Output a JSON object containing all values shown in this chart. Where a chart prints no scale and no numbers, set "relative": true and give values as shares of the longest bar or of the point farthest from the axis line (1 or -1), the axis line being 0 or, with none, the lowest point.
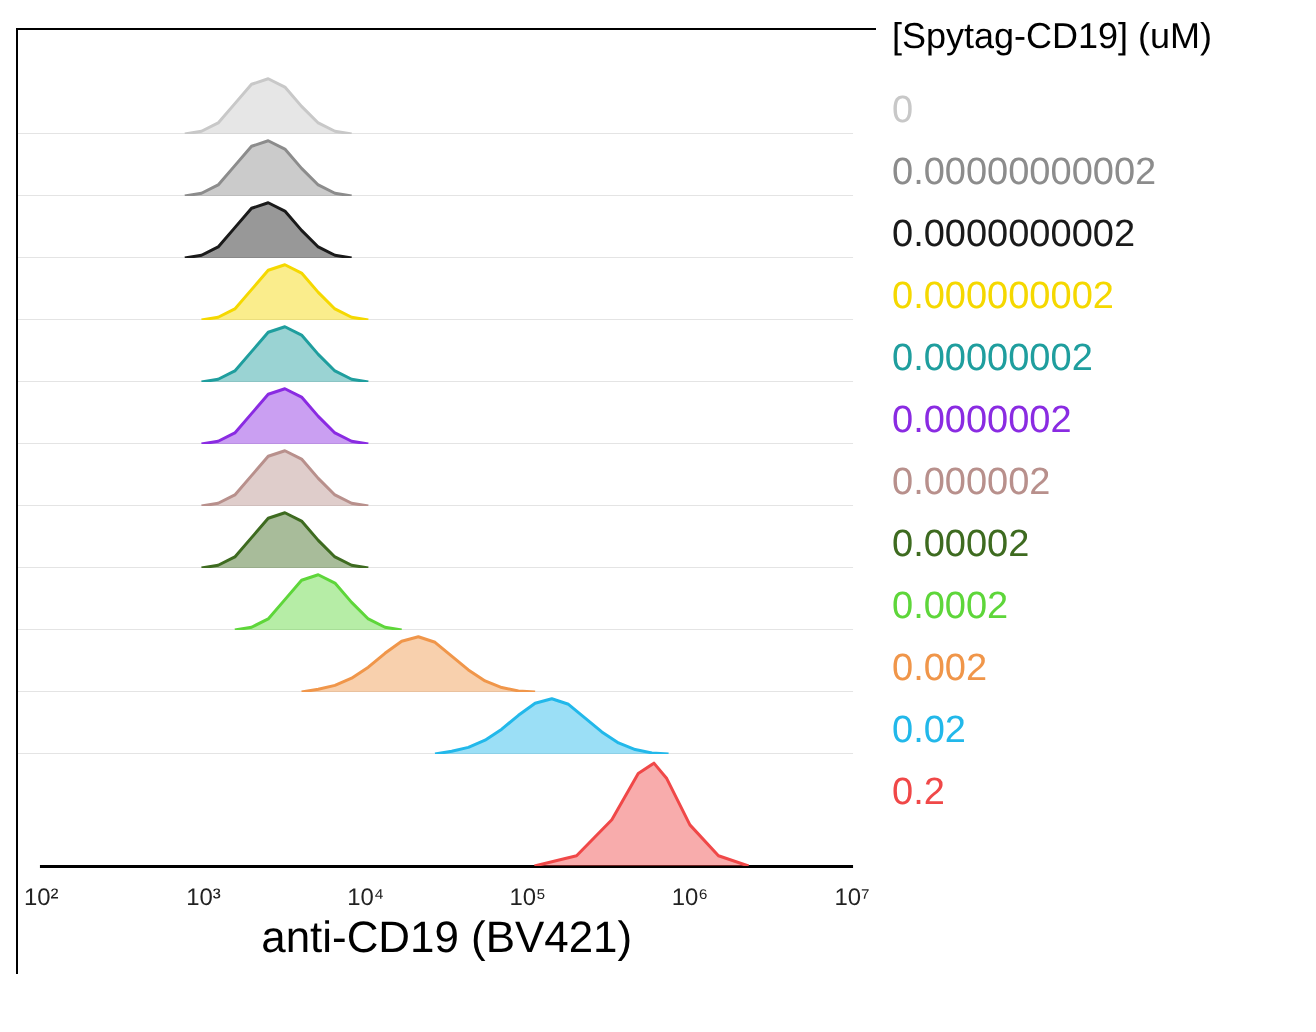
{
  "chart_data": [
    {
      "type": "area",
      "relative": true,
      "legend_title": "[Spytag-CD19] (uM)",
      "tick_labels": false,
      "categories": [
        null,
        null,
        null,
        null,
        null,
        null,
        null,
        null,
        null,
        null,
        null,
        null,
        null,
        null,
        null,
        null,
        null,
        null,
        null,
        null,
        null,
        null,
        null,
        null,
        null,
        null,
        null,
        null,
        null,
        null,
        null,
        null,
        null,
        null,
        null,
        null,
        null,
        null,
        null,
        null,
        null,
        null,
        null,
        null,
        null,
        null,
        null,
        null,
        null,
        null,
        null
      ],
      "series": [
        {
          "name": "0",
          "color": "#c8c8c8",
          "values": [
            null,
            null,
            null,
            null,
            null,
            null,
            null,
            null,
            null,
            null,
            0,
            0.05,
            0.2,
            0.55,
            0.9,
            1,
            0.85,
            0.5,
            0.2,
            0.05,
            0,
            null,
            null,
            null,
            null,
            null,
            null,
            null,
            null,
            null,
            null,
            null,
            null,
            null,
            null,
            null,
            null,
            null,
            null,
            null,
            null,
            null,
            null,
            null,
            null,
            null,
            null,
            null,
            null,
            null,
            null
          ]
        }
      ]
    },
    {
      "type": "area",
      "relative": true,
      "tick_labels": false,
      "categories": [
        null,
        null,
        null,
        null,
        null,
        null,
        null,
        null,
        null,
        null,
        null,
        null,
        null,
        null,
        null,
        null,
        null,
        null,
        null,
        null,
        null,
        null,
        null,
        null,
        null,
        null,
        null,
        null,
        null,
        null,
        null,
        null,
        null,
        null,
        null,
        null,
        null,
        null,
        null,
        null,
        null,
        null,
        null,
        null,
        null,
        null,
        null,
        null,
        null,
        null,
        null
      ],
      "series": [
        {
          "name": "0.00000000002",
          "color": "#8c8c8c",
          "values": [
            null,
            null,
            null,
            null,
            null,
            null,
            null,
            null,
            null,
            null,
            0,
            0.05,
            0.2,
            0.55,
            0.9,
            1,
            0.85,
            0.5,
            0.2,
            0.05,
            0,
            null,
            null,
            null,
            null,
            null,
            null,
            null,
            null,
            null,
            null,
            null,
            null,
            null,
            null,
            null,
            null,
            null,
            null,
            null,
            null,
            null,
            null,
            null,
            null,
            null,
            null,
            null,
            null,
            null,
            null
          ]
        }
      ]
    },
    {
      "type": "area",
      "relative": true,
      "tick_labels": false,
      "categories": [
        null,
        null,
        null,
        null,
        null,
        null,
        null,
        null,
        null,
        null,
        null,
        null,
        null,
        null,
        null,
        null,
        null,
        null,
        null,
        null,
        null,
        null,
        null,
        null,
        null,
        null,
        null,
        null,
        null,
        null,
        null,
        null,
        null,
        null,
        null,
        null,
        null,
        null,
        null,
        null,
        null,
        null,
        null,
        null,
        null,
        null,
        null,
        null,
        null,
        null,
        null
      ],
      "series": [
        {
          "name": "0.0000000002",
          "color": "#1a1a1a",
          "values": [
            null,
            null,
            null,
            null,
            null,
            null,
            null,
            null,
            null,
            null,
            0,
            0.05,
            0.2,
            0.55,
            0.9,
            1,
            0.85,
            0.5,
            0.2,
            0.05,
            0,
            null,
            null,
            null,
            null,
            null,
            null,
            null,
            null,
            null,
            null,
            null,
            null,
            null,
            null,
            null,
            null,
            null,
            null,
            null,
            null,
            null,
            null,
            null,
            null,
            null,
            null,
            null,
            null,
            null,
            null
          ]
        }
      ]
    },
    {
      "type": "area",
      "relative": true,
      "tick_labels": false,
      "categories": [
        null,
        null,
        null,
        null,
        null,
        null,
        null,
        null,
        null,
        null,
        null,
        null,
        null,
        null,
        null,
        null,
        null,
        null,
        null,
        null,
        null,
        null,
        null,
        null,
        null,
        null,
        null,
        null,
        null,
        null,
        null,
        null,
        null,
        null,
        null,
        null,
        null,
        null,
        null,
        null,
        null,
        null,
        null,
        null,
        null,
        null,
        null,
        null,
        null,
        null,
        null
      ],
      "series": [
        {
          "name": "0.000000002",
          "color": "#f5d800",
          "values": [
            null,
            null,
            null,
            null,
            null,
            null,
            null,
            null,
            null,
            null,
            null,
            0,
            0.05,
            0.2,
            0.55,
            0.9,
            1,
            0.85,
            0.5,
            0.2,
            0.05,
            0,
            null,
            null,
            null,
            null,
            null,
            null,
            null,
            null,
            null,
            null,
            null,
            null,
            null,
            null,
            null,
            null,
            null,
            null,
            null,
            null,
            null,
            null,
            null,
            null,
            null,
            null,
            null,
            null,
            null
          ]
        }
      ]
    },
    {
      "type": "area",
      "relative": true,
      "tick_labels": false,
      "categories": [
        null,
        null,
        null,
        null,
        null,
        null,
        null,
        null,
        null,
        null,
        null,
        null,
        null,
        null,
        null,
        null,
        null,
        null,
        null,
        null,
        null,
        null,
        null,
        null,
        null,
        null,
        null,
        null,
        null,
        null,
        null,
        null,
        null,
        null,
        null,
        null,
        null,
        null,
        null,
        null,
        null,
        null,
        null,
        null,
        null,
        null,
        null,
        null,
        null,
        null,
        null
      ],
      "series": [
        {
          "name": "0.00000002",
          "color": "#1f9e9e",
          "values": [
            null,
            null,
            null,
            null,
            null,
            null,
            null,
            null,
            null,
            null,
            null,
            0,
            0.05,
            0.2,
            0.55,
            0.9,
            1,
            0.85,
            0.5,
            0.2,
            0.05,
            0,
            null,
            null,
            null,
            null,
            null,
            null,
            null,
            null,
            null,
            null,
            null,
            null,
            null,
            null,
            null,
            null,
            null,
            null,
            null,
            null,
            null,
            null,
            null,
            null,
            null,
            null,
            null,
            null,
            null
          ]
        }
      ]
    },
    {
      "type": "area",
      "relative": true,
      "tick_labels": false,
      "categories": [
        null,
        null,
        null,
        null,
        null,
        null,
        null,
        null,
        null,
        null,
        null,
        null,
        null,
        null,
        null,
        null,
        null,
        null,
        null,
        null,
        null,
        null,
        null,
        null,
        null,
        null,
        null,
        null,
        null,
        null,
        null,
        null,
        null,
        null,
        null,
        null,
        null,
        null,
        null,
        null,
        null,
        null,
        null,
        null,
        null,
        null,
        null,
        null,
        null,
        null,
        null
      ],
      "series": [
        {
          "name": "0.0000002",
          "color": "#8a2be2",
          "values": [
            null,
            null,
            null,
            null,
            null,
            null,
            null,
            null,
            null,
            null,
            null,
            0,
            0.05,
            0.2,
            0.55,
            0.9,
            1,
            0.85,
            0.5,
            0.2,
            0.05,
            0,
            null,
            null,
            null,
            null,
            null,
            null,
            null,
            null,
            null,
            null,
            null,
            null,
            null,
            null,
            null,
            null,
            null,
            null,
            null,
            null,
            null,
            null,
            null,
            null,
            null,
            null,
            null,
            null,
            null
          ]
        }
      ]
    },
    {
      "type": "area",
      "relative": true,
      "tick_labels": false,
      "categories": [
        null,
        null,
        null,
        null,
        null,
        null,
        null,
        null,
        null,
        null,
        null,
        null,
        null,
        null,
        null,
        null,
        null,
        null,
        null,
        null,
        null,
        null,
        null,
        null,
        null,
        null,
        null,
        null,
        null,
        null,
        null,
        null,
        null,
        null,
        null,
        null,
        null,
        null,
        null,
        null,
        null,
        null,
        null,
        null,
        null,
        null,
        null,
        null,
        null,
        null,
        null
      ],
      "series": [
        {
          "name": "0.000002",
          "color": "#b8908c",
          "values": [
            null,
            null,
            null,
            null,
            null,
            null,
            null,
            null,
            null,
            null,
            null,
            0,
            0.05,
            0.2,
            0.55,
            0.9,
            1,
            0.85,
            0.5,
            0.2,
            0.05,
            0,
            null,
            null,
            null,
            null,
            null,
            null,
            null,
            null,
            null,
            null,
            null,
            null,
            null,
            null,
            null,
            null,
            null,
            null,
            null,
            null,
            null,
            null,
            null,
            null,
            null,
            null,
            null,
            null,
            null
          ]
        }
      ]
    },
    {
      "type": "area",
      "relative": true,
      "tick_labels": false,
      "categories": [
        null,
        null,
        null,
        null,
        null,
        null,
        null,
        null,
        null,
        null,
        null,
        null,
        null,
        null,
        null,
        null,
        null,
        null,
        null,
        null,
        null,
        null,
        null,
        null,
        null,
        null,
        null,
        null,
        null,
        null,
        null,
        null,
        null,
        null,
        null,
        null,
        null,
        null,
        null,
        null,
        null,
        null,
        null,
        null,
        null,
        null,
        null,
        null,
        null,
        null,
        null
      ],
      "series": [
        {
          "name": "0.00002",
          "color": "#3e6b20",
          "values": [
            null,
            null,
            null,
            null,
            null,
            null,
            null,
            null,
            null,
            null,
            null,
            0,
            0.05,
            0.2,
            0.55,
            0.9,
            1,
            0.85,
            0.5,
            0.2,
            0.05,
            0,
            null,
            null,
            null,
            null,
            null,
            null,
            null,
            null,
            null,
            null,
            null,
            null,
            null,
            null,
            null,
            null,
            null,
            null,
            null,
            null,
            null,
            null,
            null,
            null,
            null,
            null,
            null,
            null,
            null
          ]
        }
      ]
    },
    {
      "type": "area",
      "relative": true,
      "tick_labels": false,
      "categories": [
        null,
        null,
        null,
        null,
        null,
        null,
        null,
        null,
        null,
        null,
        null,
        null,
        null,
        null,
        null,
        null,
        null,
        null,
        null,
        null,
        null,
        null,
        null,
        null,
        null,
        null,
        null,
        null,
        null,
        null,
        null,
        null,
        null,
        null,
        null,
        null,
        null,
        null,
        null,
        null,
        null,
        null,
        null,
        null,
        null,
        null,
        null,
        null,
        null,
        null,
        null
      ],
      "series": [
        {
          "name": "0.0002",
          "color": "#5ed63a",
          "values": [
            null,
            null,
            null,
            null,
            null,
            null,
            null,
            null,
            null,
            null,
            null,
            null,
            null,
            0,
            0.05,
            0.2,
            0.55,
            0.9,
            1,
            0.85,
            0.5,
            0.2,
            0.05,
            0,
            null,
            null,
            null,
            null,
            null,
            null,
            null,
            null,
            null,
            null,
            null,
            null,
            null,
            null,
            null,
            null,
            null,
            null,
            null,
            null,
            null,
            null,
            null,
            null,
            null,
            null,
            null
          ]
        }
      ]
    },
    {
      "type": "area",
      "relative": true,
      "tick_labels": false,
      "categories": [
        null,
        null,
        null,
        null,
        null,
        null,
        null,
        null,
        null,
        null,
        null,
        null,
        null,
        null,
        null,
        null,
        null,
        null,
        null,
        null,
        null,
        null,
        null,
        null,
        null,
        null,
        null,
        null,
        null,
        null,
        null,
        null,
        null,
        null,
        null,
        null,
        null,
        null,
        null,
        null,
        null,
        null,
        null,
        null,
        null,
        null,
        null,
        null,
        null,
        null,
        null
      ],
      "series": [
        {
          "name": "0.002",
          "color": "#f0964a",
          "values": [
            null,
            null,
            null,
            null,
            null,
            null,
            null,
            null,
            null,
            null,
            null,
            null,
            null,
            null,
            null,
            null,
            null,
            0,
            0.05,
            0.12,
            0.25,
            0.45,
            0.7,
            0.92,
            1,
            0.9,
            0.65,
            0.4,
            0.2,
            0.08,
            0.02,
            0,
            null,
            null,
            null,
            null,
            null,
            null,
            null,
            null,
            null,
            null,
            null,
            null,
            null,
            null,
            null,
            null,
            null,
            null,
            null
          ]
        }
      ]
    },
    {
      "type": "area",
      "relative": true,
      "tick_labels": false,
      "categories": [
        null,
        null,
        null,
        null,
        null,
        null,
        null,
        null,
        null,
        null,
        null,
        null,
        null,
        null,
        null,
        null,
        null,
        null,
        null,
        null,
        null,
        null,
        null,
        null,
        null,
        null,
        null,
        null,
        null,
        null,
        null,
        null,
        null,
        null,
        null,
        null,
        null,
        null,
        null,
        null,
        null,
        null,
        null,
        null,
        null,
        null,
        null,
        null,
        null,
        null,
        null
      ],
      "series": [
        {
          "name": "0.02",
          "color": "#22b8ea",
          "values": [
            null,
            null,
            null,
            null,
            null,
            null,
            null,
            null,
            null,
            null,
            null,
            null,
            null,
            null,
            null,
            null,
            null,
            null,
            null,
            null,
            null,
            null,
            null,
            null,
            null,
            0,
            0.05,
            0.12,
            0.25,
            0.45,
            0.7,
            0.92,
            1,
            0.9,
            0.65,
            0.4,
            0.2,
            0.08,
            0.02,
            0,
            null,
            null,
            null,
            null,
            null,
            null,
            null,
            null,
            null,
            null,
            null
          ]
        }
      ]
    },
    {
      "type": "area",
      "relative": true,
      "log": "x",
      "xlim": [
        100,
        10000000
      ],
      "tick_labels": "x",
      "xlabel": "anti-CD19 (BV421)",
      "xticks": [
        {
          "value": 100,
          "label": "10²"
        },
        {
          "value": 1000,
          "label": "10³"
        },
        {
          "value": 10000,
          "label": "10⁴"
        },
        {
          "value": 100000,
          "label": "10⁵"
        },
        {
          "value": 1000000,
          "label": "10⁶"
        },
        {
          "value": 10000000,
          "label": "10⁷"
        }
      ],
      "x": [
        110000,
        200000,
        330000,
        480000,
        600000,
        720000,
        1000000,
        1500000,
        2300000
      ],
      "series": [
        {
          "name": "0.2",
          "color": "#f04848",
          "values": [
            0,
            0.1,
            0.45,
            0.9,
            1,
            0.85,
            0.4,
            0.1,
            0
          ]
        }
      ]
    }
  ]
}
